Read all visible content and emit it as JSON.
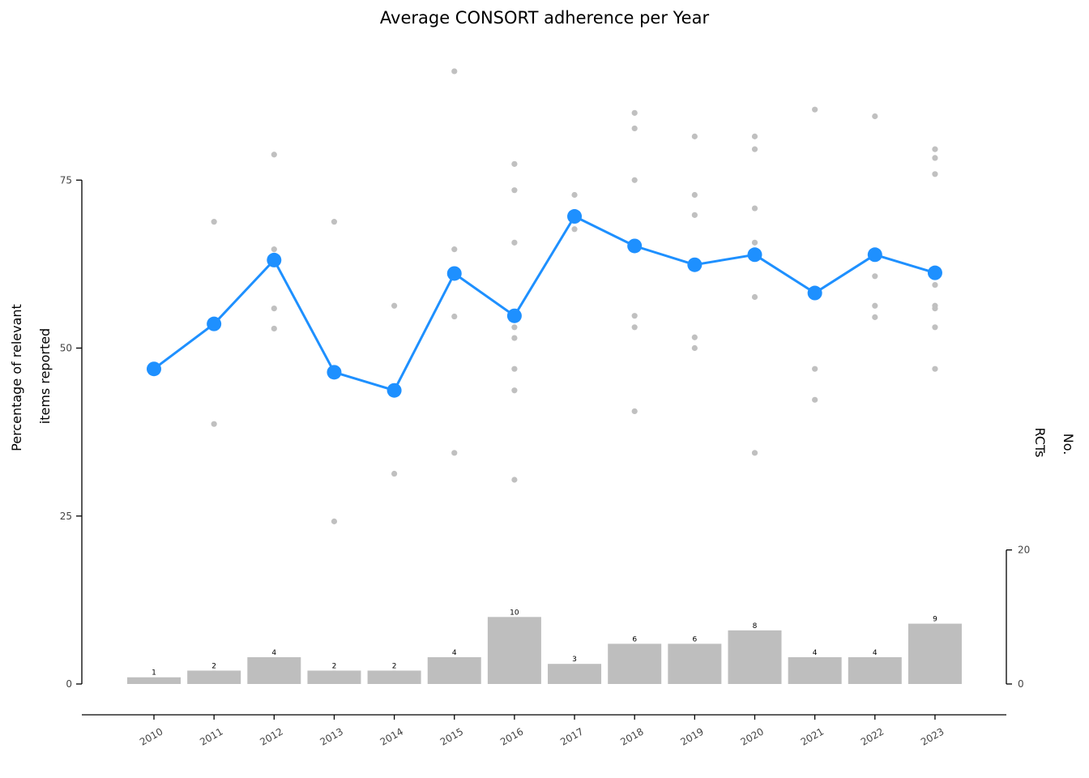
{
  "chart_data": {
    "type": "line",
    "title": "Average CONSORT adherence per Year",
    "ylabel_line1": "Percentage of relevant",
    "ylabel_line2": "items reported",
    "y2label_line1": "No.",
    "y2label_line2": "RCTs",
    "categories": [
      "2010",
      "2011",
      "2012",
      "2013",
      "2014",
      "2015",
      "2016",
      "2017",
      "2018",
      "2019",
      "2020",
      "2021",
      "2022",
      "2023"
    ],
    "y_ticks": [
      0,
      25,
      50,
      75
    ],
    "y2_ticks": [
      0,
      20
    ],
    "series": [
      {
        "kind": "line",
        "color": "#1e90ff",
        "values": [
          46.9,
          53.6,
          63.1,
          46.4,
          43.7,
          61.1,
          54.8,
          69.6,
          65.2,
          62.4,
          63.9,
          58.2,
          63.9,
          61.2
        ]
      },
      {
        "kind": "scatter",
        "color": "#c0c0c0",
        "points": [
          [
            "2010",
            46.9
          ],
          [
            "2011",
            68.8
          ],
          [
            "2011",
            38.7
          ],
          [
            "2012",
            78.8
          ],
          [
            "2012",
            64.7
          ],
          [
            "2012",
            55.9
          ],
          [
            "2012",
            52.9
          ],
          [
            "2013",
            68.8
          ],
          [
            "2013",
            24.2
          ],
          [
            "2014",
            56.3
          ],
          [
            "2014",
            31.3
          ],
          [
            "2015",
            91.2
          ],
          [
            "2015",
            64.7
          ],
          [
            "2015",
            54.7
          ],
          [
            "2015",
            34.4
          ],
          [
            "2016",
            77.4
          ],
          [
            "2016",
            73.5
          ],
          [
            "2016",
            65.7
          ],
          [
            "2016",
            53.1
          ],
          [
            "2016",
            51.5
          ],
          [
            "2016",
            46.9
          ],
          [
            "2016",
            43.7
          ],
          [
            "2016",
            30.4
          ],
          [
            "2017",
            72.8
          ],
          [
            "2017",
            67.7
          ],
          [
            "2018",
            85.0
          ],
          [
            "2018",
            82.7
          ],
          [
            "2018",
            75.0
          ],
          [
            "2018",
            54.8
          ],
          [
            "2018",
            53.1
          ],
          [
            "2018",
            40.6
          ],
          [
            "2019",
            81.5
          ],
          [
            "2019",
            72.8
          ],
          [
            "2019",
            69.8
          ],
          [
            "2019",
            51.6
          ],
          [
            "2019",
            50.0
          ],
          [
            "2020",
            81.5
          ],
          [
            "2020",
            79.6
          ],
          [
            "2020",
            70.8
          ],
          [
            "2020",
            65.7
          ],
          [
            "2020",
            57.6
          ],
          [
            "2020",
            34.4
          ],
          [
            "2021",
            85.5
          ],
          [
            "2021",
            46.9
          ],
          [
            "2021",
            42.3
          ],
          [
            "2022",
            84.5
          ],
          [
            "2022",
            60.7
          ],
          [
            "2022",
            56.3
          ],
          [
            "2022",
            54.6
          ],
          [
            "2023",
            79.6
          ],
          [
            "2023",
            78.3
          ],
          [
            "2023",
            75.9
          ],
          [
            "2023",
            59.4
          ],
          [
            "2023",
            56.3
          ],
          [
            "2023",
            55.9
          ],
          [
            "2023",
            53.1
          ],
          [
            "2023",
            46.9
          ]
        ]
      },
      {
        "kind": "bar",
        "color": "#bebebe",
        "axis": "secondary",
        "values": [
          1,
          2,
          4,
          2,
          2,
          4,
          10,
          3,
          6,
          6,
          8,
          4,
          4,
          9
        ]
      }
    ]
  }
}
